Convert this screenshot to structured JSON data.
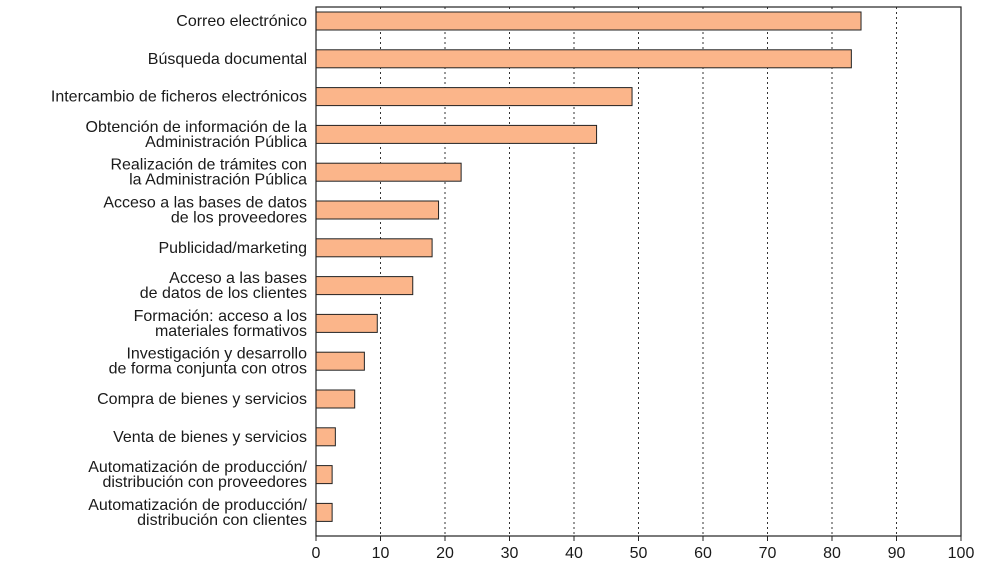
{
  "chart_data": {
    "type": "bar",
    "orientation": "horizontal",
    "title": "",
    "xlabel": "",
    "ylabel": "",
    "xlim": [
      0,
      100
    ],
    "xticks": [
      0,
      10,
      20,
      30,
      40,
      50,
      60,
      70,
      80,
      90,
      100
    ],
    "grid": "vertical-dashed",
    "bar_color": "#fbb58a",
    "categories": [
      [
        "Correo electrónico"
      ],
      [
        "Búsqueda documental"
      ],
      [
        "Intercambio de ficheros electrónicos"
      ],
      [
        "Obtención de información de la",
        "Administración Pública"
      ],
      [
        "Realización de trámites con",
        "la Administración Pública"
      ],
      [
        "Acceso a las bases de datos",
        "de los proveedores"
      ],
      [
        "Publicidad/marketing"
      ],
      [
        "Acceso a las bases",
        "de datos de los clientes"
      ],
      [
        "Formación: acceso a los",
        "materiales formativos"
      ],
      [
        "Investigación y desarrollo",
        "de forma conjunta con otros"
      ],
      [
        "Compra de bienes y servicios"
      ],
      [
        "Venta de bienes y servicios"
      ],
      [
        "Automatización de producción/",
        "distribución con proveedores"
      ],
      [
        "Automatización de producción/",
        "distribución con clientes"
      ]
    ],
    "values": [
      84.5,
      83,
      49,
      43.5,
      22.5,
      19,
      18,
      15,
      9.5,
      7.5,
      6,
      3,
      2.5,
      2.5
    ]
  }
}
